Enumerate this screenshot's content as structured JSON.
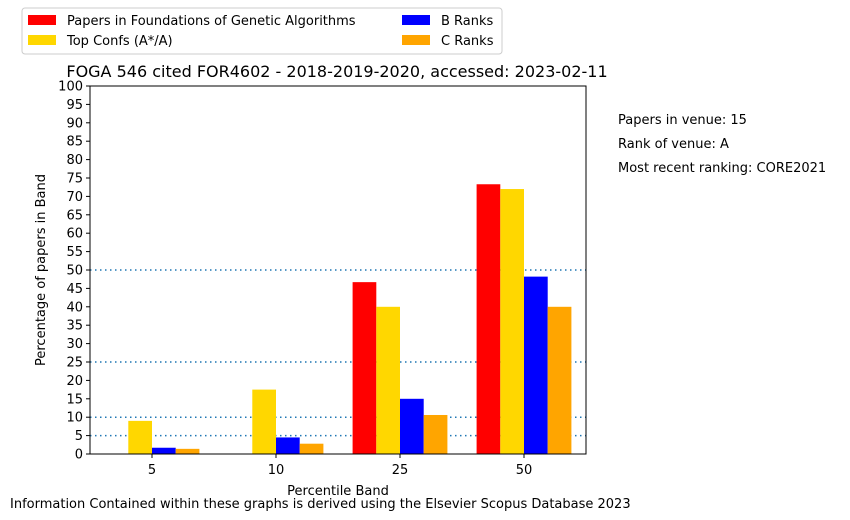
{
  "chart_data": {
    "type": "bar",
    "title": "FOGA 546 cited FOR4602 - 2018-2019-2020, accessed: 2023-02-11",
    "xlabel": "Percentile Band",
    "ylabel": "Percentage of papers in Band",
    "categories": [
      "5",
      "10",
      "25",
      "50"
    ],
    "ylim": [
      0,
      100
    ],
    "yticks": [
      0,
      5,
      10,
      15,
      20,
      25,
      30,
      35,
      40,
      45,
      50,
      55,
      60,
      65,
      70,
      75,
      80,
      85,
      90,
      95,
      100
    ],
    "reference_lines": [
      5,
      10,
      25,
      50
    ],
    "series": [
      {
        "name": "Papers in Foundations of Genetic Algorithms",
        "color": "#ff0000",
        "values": [
          0,
          0,
          46.7,
          73.3
        ]
      },
      {
        "name": "Top Confs (A*/A)",
        "color": "#ffd700",
        "values": [
          9.0,
          17.5,
          40.0,
          72.0
        ]
      },
      {
        "name": "B Ranks",
        "color": "#0000ff",
        "values": [
          1.7,
          4.5,
          15.0,
          48.2
        ]
      },
      {
        "name": "C Ranks",
        "color": "#ffa500",
        "values": [
          1.4,
          2.8,
          10.6,
          40.0
        ]
      }
    ],
    "legend_position": "top-left, outside plot",
    "grid": false
  },
  "side_info": [
    "Papers in venue: 15",
    "Rank of venue: A",
    "Most recent ranking: CORE2021"
  ],
  "footer": "Information Contained within these graphs is derived using the Elsevier Scopus Database 2023"
}
